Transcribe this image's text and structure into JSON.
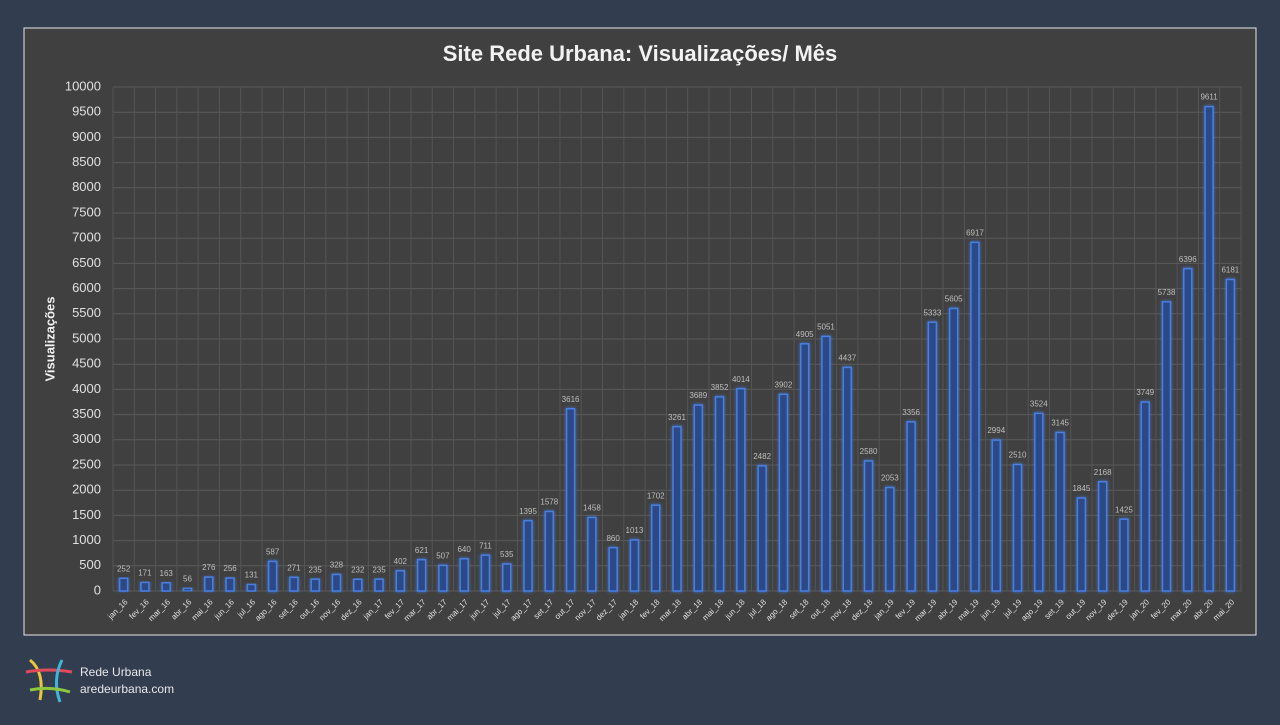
{
  "chart_data": {
    "type": "bar",
    "title": "Site Rede Urbana: Visualizações/ Mês",
    "y_label": "Visualizações",
    "categories": [
      "jan_16",
      "fev_16",
      "mar_16",
      "abr_16",
      "mai_16",
      "jun_16",
      "jul_16",
      "ago_16",
      "set_16",
      "out_16",
      "nov_16",
      "dez_16",
      "jan_17",
      "fev_17",
      "mar_17",
      "abr_17",
      "mai_17",
      "jun_17",
      "jul_17",
      "ago_17",
      "set_17",
      "out_17",
      "nov_17",
      "dez_17",
      "jan_18",
      "fev_18",
      "mar_18",
      "abr_18",
      "mai_18",
      "jun_18",
      "jul_18",
      "ago_18",
      "set_18",
      "out_18",
      "nov_18",
      "dez_18",
      "jan_19",
      "fev_19",
      "mar_19",
      "abr_19",
      "mai_19",
      "jun_19",
      "jul_19",
      "ago_19",
      "set_19",
      "out_19",
      "nov_19",
      "dez_19",
      "jan_20",
      "fev_20",
      "mar_20",
      "abr_20",
      "mai_20"
    ],
    "values": [
      252,
      171,
      163,
      56,
      276,
      256,
      131,
      587,
      271,
      235,
      328,
      232,
      235,
      402,
      621,
      507,
      640,
      711,
      535,
      1395,
      1578,
      3616,
      1458,
      860,
      1013,
      1702,
      3261,
      3689,
      3852,
      4014,
      2482,
      3902,
      4905,
      5051,
      4437,
      2580,
      2053,
      3356,
      5333,
      5605,
      6917,
      2994,
      2510,
      3524,
      3145,
      1845,
      2168,
      1425,
      3749,
      5738,
      6396,
      9611,
      6181
    ],
    "color": "#4a7fe0",
    "ylim": [
      0,
      10000
    ],
    "yticks": [
      0,
      500,
      1000,
      1500,
      2000,
      2500,
      3000,
      3500,
      4000,
      4500,
      5000,
      5500,
      6000,
      6500,
      7000,
      7500,
      8000,
      8500,
      9000,
      9500,
      10000
    ],
    "grid": true
  },
  "footer": {
    "brand": "Rede Urbana",
    "site": "aredeurbana.com"
  }
}
